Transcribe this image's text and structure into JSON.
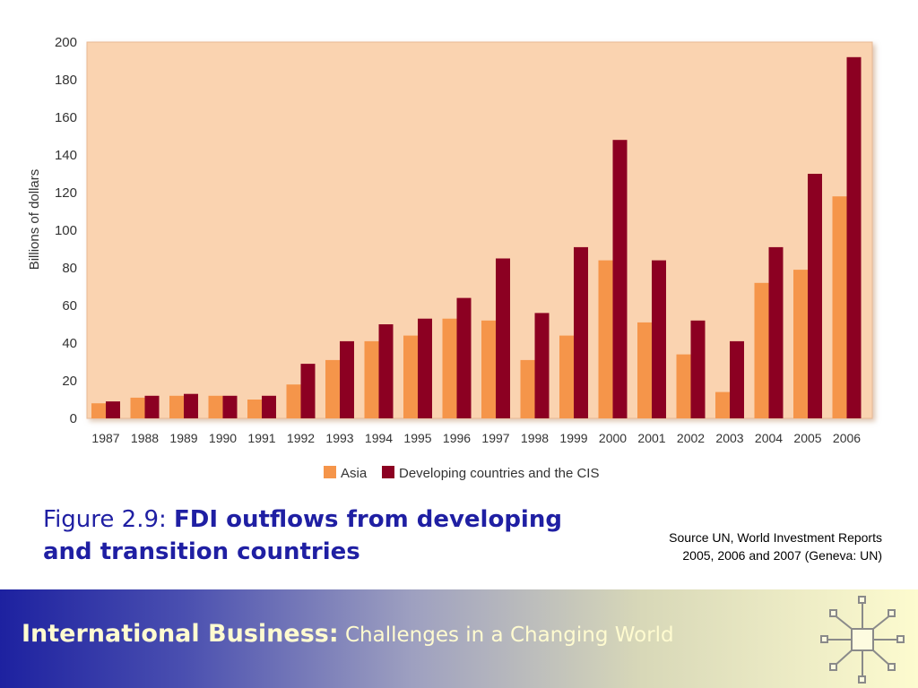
{
  "chart_data": {
    "type": "bar",
    "title": "",
    "xlabel": "",
    "ylabel": "Billions of dollars",
    "ylim": [
      0,
      200
    ],
    "yticks": [
      0,
      20,
      40,
      60,
      80,
      100,
      120,
      140,
      160,
      180,
      200
    ],
    "categories": [
      "1987",
      "1988",
      "1989",
      "1990",
      "1991",
      "1992",
      "1993",
      "1994",
      "1995",
      "1996",
      "1997",
      "1998",
      "1999",
      "2000",
      "2001",
      "2002",
      "2003",
      "2004",
      "2005",
      "2006"
    ],
    "series": [
      {
        "name": "Asia",
        "color": "#f5954a",
        "values": [
          8,
          11,
          12,
          12,
          10,
          18,
          31,
          41,
          44,
          53,
          52,
          31,
          44,
          84,
          51,
          34,
          14,
          72,
          79,
          118
        ]
      },
      {
        "name": "Developing countries and the CIS",
        "color": "#8c0022",
        "values": [
          9,
          12,
          13,
          12,
          12,
          29,
          41,
          50,
          53,
          64,
          85,
          56,
          91,
          148,
          84,
          52,
          41,
          91,
          130,
          192
        ]
      }
    ],
    "grid": false,
    "legend": "bottom",
    "plot_background": "#fad3b0"
  },
  "caption": {
    "lead": "Figure 2.9: ",
    "bold": "FDI outflows from developing and transition countries"
  },
  "source": {
    "line1": "Source UN, World Investment Reports",
    "line2": "2005, 2006 and 2007 (Geneva: UN)"
  },
  "footer": {
    "title_main": "International Business",
    "title_sep": ":",
    "title_sub": " Challenges in a Changing World",
    "logo_icon": "network-node-icon"
  }
}
